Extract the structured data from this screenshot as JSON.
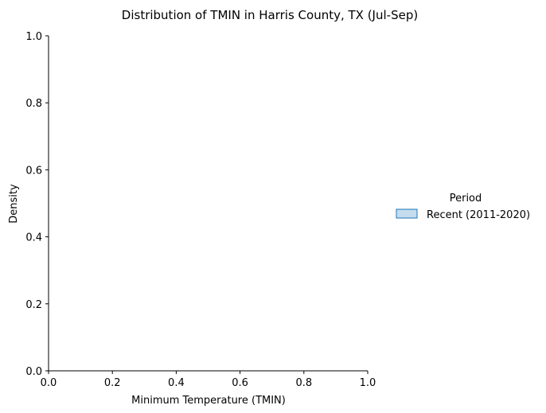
{
  "chart_data": {
    "type": "area",
    "title": "Distribution of TMIN in Harris County, TX (Jul-Sep)",
    "xlabel": "Minimum Temperature (TMIN)",
    "ylabel": "Density",
    "xlim": [
      0,
      1
    ],
    "ylim": [
      0,
      1
    ],
    "x_ticks": [
      "0.0",
      "0.2",
      "0.4",
      "0.6",
      "0.8",
      "1.0"
    ],
    "y_ticks": [
      "0.0",
      "0.2",
      "0.4",
      "0.6",
      "0.8",
      "1.0"
    ],
    "grid": false,
    "legend": {
      "title": "Period",
      "placement": "right",
      "entries": [
        {
          "label": "Recent (2011-2020)",
          "fill": "#c5dcef",
          "stroke": "#1f77b4"
        }
      ]
    },
    "series": []
  }
}
